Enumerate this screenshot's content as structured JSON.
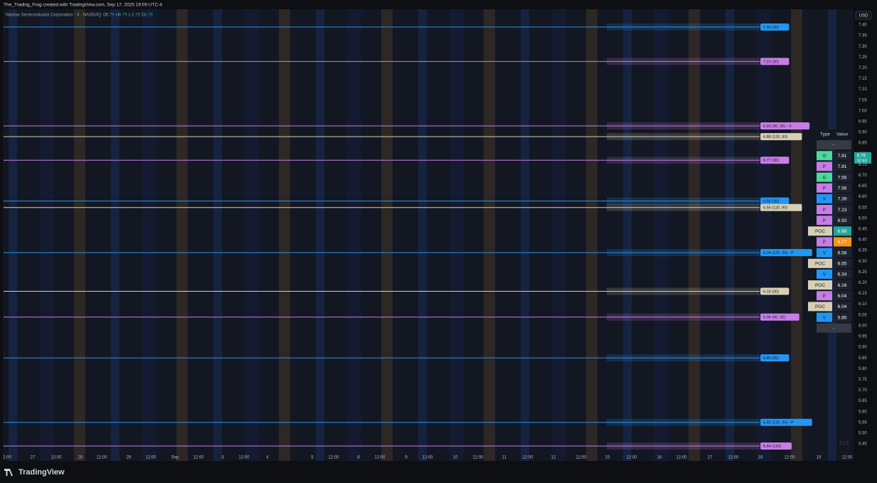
{
  "header": {
    "title": "The_Trading_Frog created with TradingView.com, Sep 17, 2025 19:09 UTC-4"
  },
  "symbol": {
    "name": "Navitas Semiconductor Corporation · 3 · NASDAQ",
    "ohlc": [
      {
        "k": "O",
        "v": "6.79"
      },
      {
        "k": "H",
        "v": "6.79"
      },
      {
        "k": "L",
        "v": "6.79"
      },
      {
        "k": "C",
        "v": "6.79"
      }
    ]
  },
  "currency": "USD",
  "price_axis": [
    "7.40",
    "7.35",
    "7.30",
    "7.25",
    "7.20",
    "7.15",
    "7.10",
    "7.05",
    "7.00",
    "6.95",
    "6.90",
    "6.85",
    "6.80",
    "6.75",
    "6.70",
    "6.65",
    "6.60",
    "6.55",
    "6.50",
    "6.45",
    "6.40",
    "6.35",
    "6.30",
    "6.25",
    "6.20",
    "6.15",
    "6.10",
    "6.05",
    "6.00",
    "5.95",
    "5.90",
    "5.85",
    "5.80",
    "5.75",
    "5.70",
    "5.65",
    "5.60",
    "5.55",
    "5.50",
    "5.45"
  ],
  "current_price": {
    "price": "6.79",
    "countdown": "02:43",
    "color": "#26a69a"
  },
  "time_axis": [
    "2:00",
    "27",
    "12:00",
    "28",
    "12:00",
    "29",
    "12:00",
    "Sep",
    "12:00",
    "3",
    "12:00",
    "4",
    "5",
    "12:00",
    "8",
    "12:00",
    "9",
    "12:00",
    "10",
    "12:00",
    "11",
    "12:00",
    "12",
    "12:00",
    "15",
    "12:00",
    "16",
    "12:00",
    "17",
    "12:00",
    "18",
    "12:00",
    "19",
    "12:00"
  ],
  "levels": [
    {
      "price": 7.39,
      "label": "7.39 (30)",
      "color": "#2196f3"
    },
    {
      "price": 7.23,
      "label": "7.23 (30)",
      "color": "#c77de6"
    },
    {
      "price": 6.93,
      "label": "6.93 (90, 30) - V",
      "color": "#c77de6"
    },
    {
      "price": 6.88,
      "label": "6.88 (120, 90)",
      "color": "#d6cfb4"
    },
    {
      "price": 6.77,
      "label": "6.77 (30)",
      "color": "#c77de6"
    },
    {
      "price": 6.58,
      "label": "6.58 (30)",
      "color": "#2196f3"
    },
    {
      "price": 6.55,
      "label": "6.55 (120, 90)",
      "color": "#d6cfb4"
    },
    {
      "price": 6.34,
      "label": "6.34 (120, 30) - P",
      "color": "#2196f3"
    },
    {
      "price": 6.16,
      "label": "6.16 (30)",
      "color": "#d6cfb4"
    },
    {
      "price": 6.04,
      "label": "6.04 (90, 30)",
      "color": "#c77de6"
    },
    {
      "price": 5.85,
      "label": "5.85 (90)",
      "color": "#2196f3"
    },
    {
      "price": 5.55,
      "label": "5.55 (120, 30) - P",
      "color": "#2196f3"
    },
    {
      "price": 5.44,
      "label": "5.44 (120)",
      "color": "#c77de6"
    }
  ],
  "table": {
    "headers": [
      "Type",
      "Value"
    ],
    "placeholder": "--",
    "type_colors": {
      "G": "#4cd99a",
      "P": "#c77de6",
      "V": "#2196f3",
      "POC": "#d6cfb4"
    },
    "rows": [
      {
        "type": "G",
        "value": "7.81"
      },
      {
        "type": "P",
        "value": "7.81"
      },
      {
        "type": "G",
        "value": "7.56"
      },
      {
        "type": "P",
        "value": "7.56"
      },
      {
        "type": "V",
        "value": "7.39"
      },
      {
        "type": "P",
        "value": "7.23"
      },
      {
        "type": "P",
        "value": "6.93"
      },
      {
        "type": "POC",
        "value": "6.88",
        "value_color": "#26a69a"
      },
      {
        "type": "P",
        "value": "6.77",
        "value_color": "#f7931a"
      },
      {
        "type": "V",
        "value": "6.58"
      },
      {
        "type": "POC",
        "value": "6.55"
      },
      {
        "type": "V",
        "value": "6.34"
      },
      {
        "type": "POC",
        "value": "6.16"
      },
      {
        "type": "P",
        "value": "6.04"
      },
      {
        "type": "POC",
        "value": "6.04"
      },
      {
        "type": "V",
        "value": "5.85"
      }
    ]
  },
  "version": "2.1.0",
  "footer": {
    "brand": "TradingView"
  }
}
